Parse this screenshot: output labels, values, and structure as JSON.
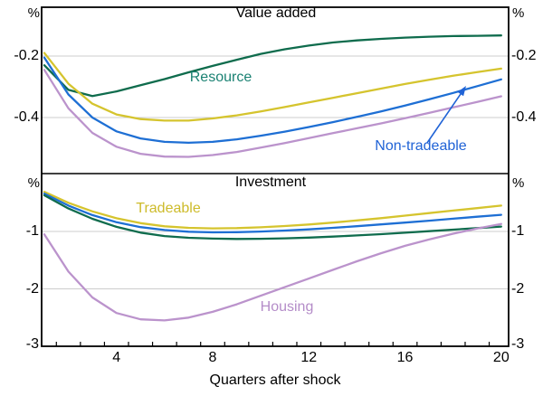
{
  "figure": {
    "x_axis_label": "Quarters after shock",
    "unit_label": "%",
    "grid_color": "#cccccc",
    "frame_color": "#000000",
    "accent_colors": {
      "resource_green": "#0F6C4D",
      "resource_label_teal": "#1B8273",
      "tradeable_yellow": "#D5C42E",
      "non_tradeable_blue": "#1E6FD4",
      "housing_purple": "#BB93CC"
    }
  },
  "chart_data": [
    {
      "type": "line",
      "panel": "top",
      "title": "Value added",
      "unit_label": "%",
      "ylim": [
        -0.6,
        0
      ],
      "gridlines": [
        -0.2,
        -0.4
      ],
      "yticks": [
        -0.2,
        -0.4
      ],
      "ytick_labels": [
        "-0.2",
        "-0.4"
      ],
      "x": [
        1,
        2,
        3,
        4,
        5,
        6,
        7,
        8,
        9,
        10,
        11,
        12,
        13,
        14,
        15,
        16,
        17,
        18,
        19,
        20
      ],
      "series": [
        {
          "name": "Resource",
          "color": "#0F6C4D",
          "label_color": "#1B8273",
          "values": [
            -0.23,
            -0.31,
            -0.33,
            -0.315,
            -0.295,
            -0.275,
            -0.253,
            -0.232,
            -0.212,
            -0.193,
            -0.178,
            -0.166,
            -0.156,
            -0.149,
            -0.144,
            -0.14,
            -0.137,
            -0.135,
            -0.134,
            -0.133
          ]
        },
        {
          "name": "Tradeable",
          "color": "#D5C42E",
          "label_color": "#CDBB2A",
          "values": [
            -0.19,
            -0.29,
            -0.355,
            -0.39,
            -0.405,
            -0.41,
            -0.41,
            -0.403,
            -0.393,
            -0.38,
            -0.366,
            -0.351,
            -0.336,
            -0.321,
            -0.306,
            -0.291,
            -0.277,
            -0.264,
            -0.252,
            -0.241
          ]
        },
        {
          "name": "Non-tradeable",
          "color": "#1E6FD4",
          "label_color": "#2063D6",
          "values": [
            -0.205,
            -0.325,
            -0.4,
            -0.445,
            -0.468,
            -0.479,
            -0.482,
            -0.479,
            -0.471,
            -0.459,
            -0.446,
            -0.431,
            -0.415,
            -0.398,
            -0.38,
            -0.361,
            -0.341,
            -0.32,
            -0.298,
            -0.276
          ]
        },
        {
          "name": "Housing",
          "color": "#BB93CC",
          "label_color": "#B48CC8",
          "values": [
            -0.245,
            -0.37,
            -0.45,
            -0.495,
            -0.518,
            -0.527,
            -0.528,
            -0.522,
            -0.512,
            -0.498,
            -0.483,
            -0.467,
            -0.451,
            -0.435,
            -0.419,
            -0.402,
            -0.385,
            -0.367,
            -0.349,
            -0.331
          ]
        }
      ]
    },
    {
      "type": "line",
      "panel": "bottom",
      "title": "Investment",
      "unit_label": "%",
      "xlabel": "Quarters after shock",
      "ylim": [
        -3,
        0
      ],
      "gridlines": [
        -1,
        -2
      ],
      "yticks": [
        -1,
        -2,
        -3
      ],
      "ytick_labels": [
        "-1",
        "-2",
        "-3"
      ],
      "xticks": [
        4,
        8,
        12,
        16,
        20
      ],
      "xtick_labels": [
        "4",
        "8",
        "12",
        "16",
        "20"
      ],
      "x": [
        1,
        2,
        3,
        4,
        5,
        6,
        7,
        8,
        9,
        10,
        11,
        12,
        13,
        14,
        15,
        16,
        17,
        18,
        19,
        20
      ],
      "series": [
        {
          "name": "Tradeable",
          "color": "#D5C42E",
          "label_color": "#CDBB2A",
          "values": [
            -0.31,
            -0.5,
            -0.65,
            -0.77,
            -0.855,
            -0.91,
            -0.937,
            -0.946,
            -0.942,
            -0.928,
            -0.906,
            -0.878,
            -0.845,
            -0.808,
            -0.768,
            -0.725,
            -0.681,
            -0.637,
            -0.593,
            -0.55
          ]
        },
        {
          "name": "Non-tradeable",
          "color": "#1E6FD4",
          "label_color": "#2063D6",
          "values": [
            -0.34,
            -0.55,
            -0.715,
            -0.84,
            -0.925,
            -0.975,
            -1.005,
            -1.015,
            -1.013,
            -1.002,
            -0.985,
            -0.963,
            -0.937,
            -0.908,
            -0.877,
            -0.845,
            -0.812,
            -0.778,
            -0.744,
            -0.71
          ]
        },
        {
          "name": "Resource",
          "color": "#0F6C4D",
          "label_color": "#1B8273",
          "values": [
            -0.37,
            -0.6,
            -0.78,
            -0.92,
            -1.02,
            -1.08,
            -1.11,
            -1.125,
            -1.13,
            -1.128,
            -1.12,
            -1.107,
            -1.09,
            -1.07,
            -1.047,
            -1.022,
            -0.996,
            -0.969,
            -0.942,
            -0.915
          ]
        },
        {
          "name": "Housing",
          "color": "#BB93CC",
          "label_color": "#B48CC8",
          "values": [
            -1.05,
            -1.7,
            -2.15,
            -2.42,
            -2.53,
            -2.55,
            -2.5,
            -2.4,
            -2.27,
            -2.12,
            -1.97,
            -1.82,
            -1.67,
            -1.52,
            -1.38,
            -1.25,
            -1.14,
            -1.04,
            -0.95,
            -0.87
          ]
        }
      ]
    }
  ]
}
